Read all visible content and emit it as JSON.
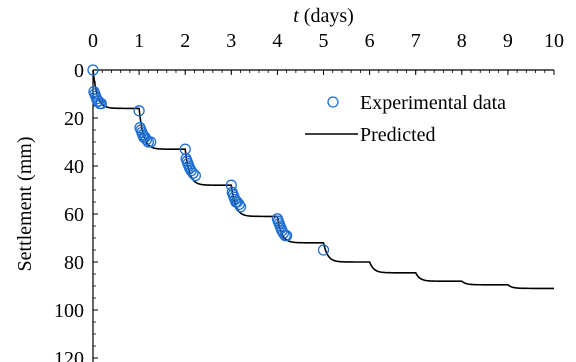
{
  "chart_data": {
    "type": "line",
    "xlabel_italic": "t",
    "xlabel_rest": " (days)",
    "ylabel": "Settlement (mm)",
    "xlim": [
      0,
      10
    ],
    "ylim": [
      0,
      120
    ],
    "y_inverted": true,
    "x_axis_position": "top",
    "x_ticks": [
      "0",
      "1",
      "2",
      "3",
      "4",
      "5",
      "6",
      "7",
      "8",
      "9",
      "10"
    ],
    "y_ticks": [
      "0",
      "20",
      "40",
      "60",
      "80",
      "100",
      "120"
    ],
    "legend": {
      "placement": "top-right",
      "entries": [
        "Experimental data",
        "Predicted"
      ]
    },
    "colors": {
      "experimental": "#1f6fd1",
      "predicted": "#000000"
    },
    "series": [
      {
        "name": "Experimental data",
        "kind": "scatter",
        "x": [
          0,
          0.02,
          0.04,
          0.06,
          0.08,
          0.1,
          0.12,
          0.15,
          0.18,
          1.0,
          1.02,
          1.04,
          1.06,
          1.08,
          1.1,
          1.13,
          1.16,
          1.2,
          1.25,
          2.0,
          2.02,
          2.04,
          2.06,
          2.08,
          2.1,
          2.13,
          2.17,
          2.22,
          3.0,
          3.02,
          3.04,
          3.06,
          3.08,
          3.1,
          3.13,
          3.17,
          3.2,
          4.0,
          4.02,
          4.04,
          4.06,
          4.08,
          4.1,
          4.13,
          4.17,
          4.2,
          5.0
        ],
        "y": [
          0,
          9,
          10,
          11,
          12,
          13,
          13,
          14,
          14,
          17,
          24,
          25,
          26,
          27,
          28,
          28,
          29,
          30,
          30,
          33,
          37,
          38,
          39,
          40,
          41,
          42,
          43,
          44,
          48,
          51,
          52,
          53,
          54,
          55,
          55,
          56,
          57,
          62,
          63,
          64,
          65,
          66,
          67,
          68,
          69,
          69,
          75
        ]
      },
      {
        "name": "Predicted",
        "kind": "line",
        "stages": [
          {
            "t0": 0,
            "s0": 0,
            "s1": 16
          },
          {
            "t0": 1,
            "s0": 16,
            "s1": 33
          },
          {
            "t0": 2,
            "s0": 33,
            "s1": 48
          },
          {
            "t0": 3,
            "s0": 48,
            "s1": 61
          },
          {
            "t0": 4,
            "s0": 61,
            "s1": 72
          },
          {
            "t0": 5,
            "s0": 72,
            "s1": 80
          },
          {
            "t0": 6,
            "s0": 80,
            "s1": 84.5
          },
          {
            "t0": 7,
            "s0": 84.5,
            "s1": 88
          },
          {
            "t0": 8,
            "s0": 88,
            "s1": 89.5
          },
          {
            "t0": 9,
            "s0": 89.5,
            "s1": 91
          }
        ],
        "end_x": 10
      }
    ]
  }
}
